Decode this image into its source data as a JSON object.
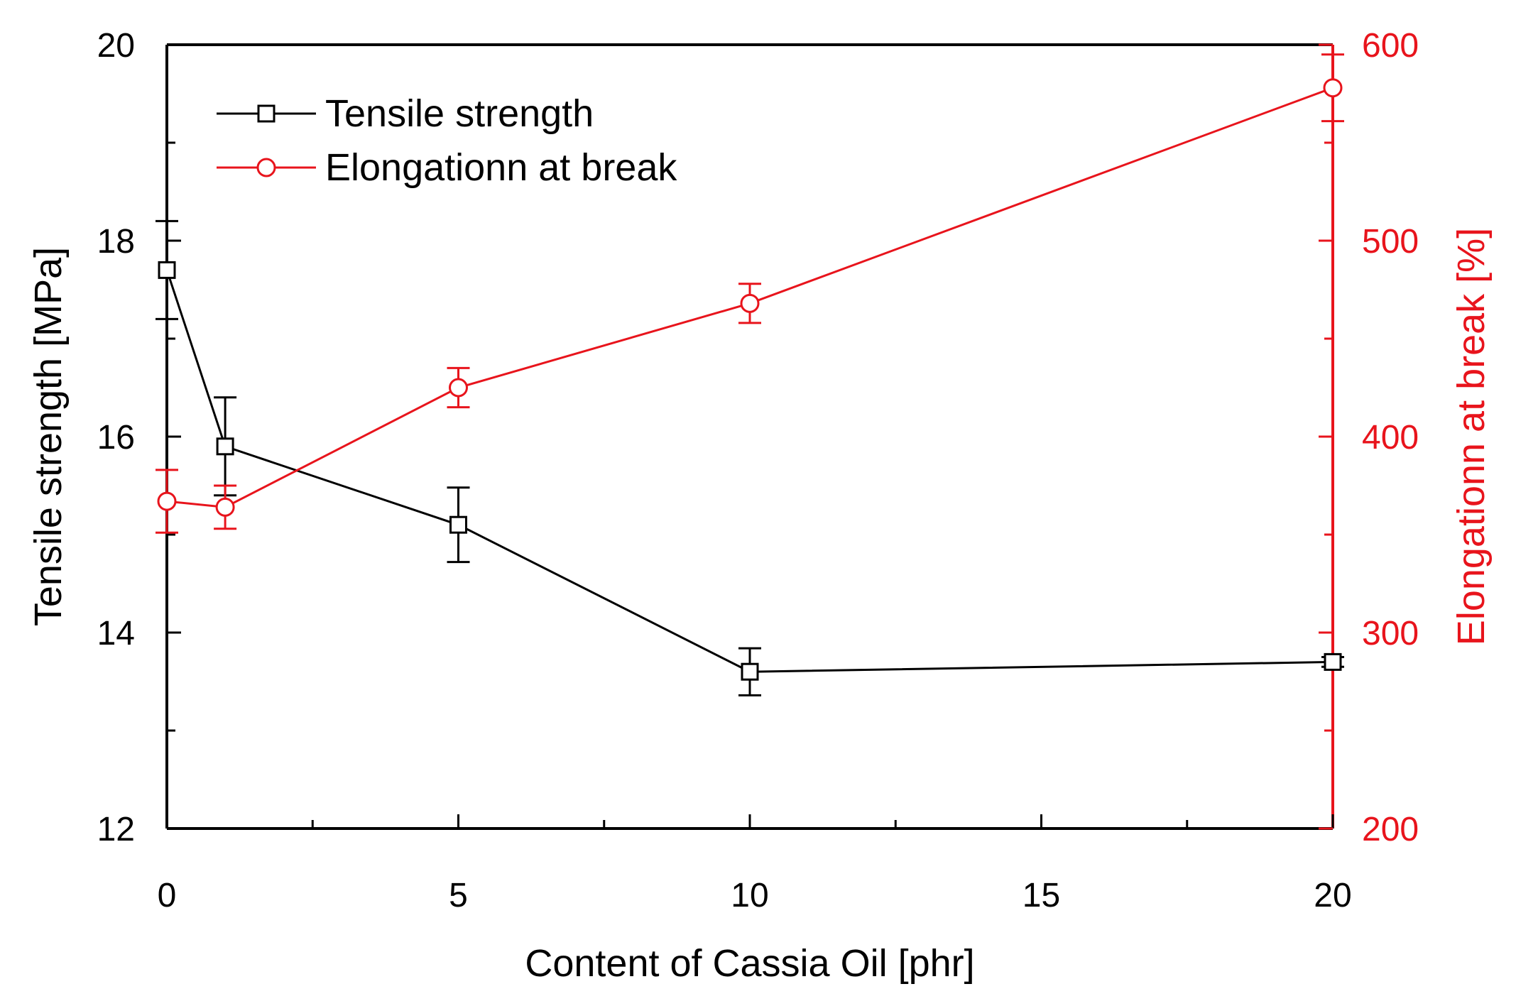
{
  "chart_data": {
    "type": "line",
    "title": "",
    "xlabel": "Content of Cassia Oil [phr]",
    "ylabel": "Tensile strength [MPa]",
    "y2label": "Elongationn at break [%]",
    "xlim": [
      0,
      20
    ],
    "ylim": [
      12,
      20
    ],
    "y2lim": [
      200,
      600
    ],
    "xticks": [
      0,
      5,
      10,
      15,
      20
    ],
    "yticks": [
      12,
      14,
      16,
      18,
      20
    ],
    "y2ticks": [
      200,
      300,
      400,
      500,
      600
    ],
    "grid": false,
    "legend_position": "top-left",
    "series": [
      {
        "name": "Tensile strength",
        "axis": "left",
        "marker": "square",
        "color": "#000000",
        "x": [
          0,
          1,
          5,
          10,
          20
        ],
        "y": [
          17.7,
          15.9,
          15.1,
          13.6,
          13.7
        ],
        "err": [
          0.5,
          0.5,
          0.38,
          0.24,
          0.05
        ]
      },
      {
        "name": "Elongationn at break",
        "axis": "right",
        "marker": "circle",
        "color": "#e8141c",
        "x": [
          0,
          1,
          5,
          10,
          20
        ],
        "y": [
          367,
          364,
          425,
          468,
          578
        ],
        "err": [
          16,
          11,
          10,
          10,
          17
        ]
      }
    ]
  }
}
